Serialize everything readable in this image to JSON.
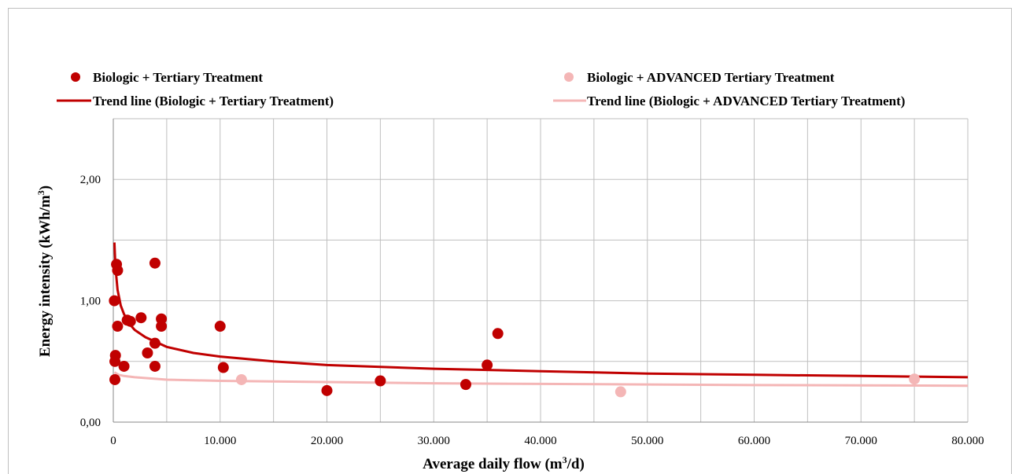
{
  "chart_data": {
    "type": "scatter",
    "xlabel": "Average daily flow (m",
    "xlabel_sup": "3",
    "xlabel_end": "/d)",
    "ylabel": "Energy intensity (kWh/m",
    "ylabel_sup": "3",
    "ylabel_end": ")",
    "xlim": [
      0,
      80000
    ],
    "ylim": [
      0,
      2.5
    ],
    "x_ticks": [
      0,
      10000,
      20000,
      30000,
      40000,
      50000,
      60000,
      70000,
      80000
    ],
    "x_tick_labels": [
      "0",
      "10.000",
      "20.000",
      "30.000",
      "40.000",
      "50.000",
      "60.000",
      "70.000",
      "80.000"
    ],
    "y_ticks": [
      0,
      1,
      2
    ],
    "y_tick_labels": [
      "0,00",
      "1,00",
      "2,00"
    ],
    "grid": true,
    "legend_placement": "top",
    "series": [
      {
        "name": "Biologic + Tertiary Treatment",
        "color": "#c00000",
        "points": [
          [
            100,
            1.0
          ],
          [
            150,
            0.5
          ],
          [
            200,
            0.55
          ],
          [
            150,
            0.35
          ],
          [
            300,
            1.3
          ],
          [
            400,
            1.25
          ],
          [
            400,
            0.79
          ],
          [
            1000,
            0.46
          ],
          [
            1300,
            0.84
          ],
          [
            1600,
            0.83
          ],
          [
            2600,
            0.86
          ],
          [
            3200,
            0.57
          ],
          [
            3900,
            1.31
          ],
          [
            3900,
            0.65
          ],
          [
            3900,
            0.46
          ],
          [
            4500,
            0.85
          ],
          [
            4500,
            0.79
          ],
          [
            10000,
            0.79
          ],
          [
            10300,
            0.45
          ],
          [
            20000,
            0.26
          ],
          [
            25000,
            0.34
          ],
          [
            33000,
            0.31
          ],
          [
            35000,
            0.47
          ],
          [
            36000,
            0.73
          ]
        ]
      },
      {
        "name": "Biologic + ADVANCED Tertiary Treatment",
        "color": "#f4b6b6",
        "points": [
          [
            12000,
            0.35
          ],
          [
            47500,
            0.25
          ],
          [
            75000,
            0.355
          ]
        ]
      }
    ],
    "trend_lines": [
      {
        "name": "Trend line (Biologic + Tertiary Treatment)",
        "color": "#c00000",
        "points": [
          [
            100,
            1.48
          ],
          [
            200,
            1.28
          ],
          [
            400,
            1.09
          ],
          [
            700,
            0.96
          ],
          [
            1000,
            0.89
          ],
          [
            1500,
            0.81
          ],
          [
            2000,
            0.76
          ],
          [
            3000,
            0.7
          ],
          [
            5000,
            0.62
          ],
          [
            7500,
            0.57
          ],
          [
            10000,
            0.54
          ],
          [
            15000,
            0.5
          ],
          [
            20000,
            0.47
          ],
          [
            30000,
            0.44
          ],
          [
            40000,
            0.42
          ],
          [
            50000,
            0.4
          ],
          [
            60000,
            0.39
          ],
          [
            70000,
            0.38
          ],
          [
            80000,
            0.37
          ]
        ]
      },
      {
        "name": "Trend line (Biologic + ADVANCED Tertiary Treatment)",
        "color": "#f4b6b6",
        "points": [
          [
            100,
            0.41
          ],
          [
            500,
            0.39
          ],
          [
            1000,
            0.38
          ],
          [
            2000,
            0.37
          ],
          [
            5000,
            0.35
          ],
          [
            10000,
            0.34
          ],
          [
            20000,
            0.33
          ],
          [
            30000,
            0.32
          ],
          [
            40000,
            0.315
          ],
          [
            50000,
            0.31
          ],
          [
            60000,
            0.305
          ],
          [
            70000,
            0.303
          ],
          [
            80000,
            0.3
          ]
        ]
      }
    ]
  }
}
